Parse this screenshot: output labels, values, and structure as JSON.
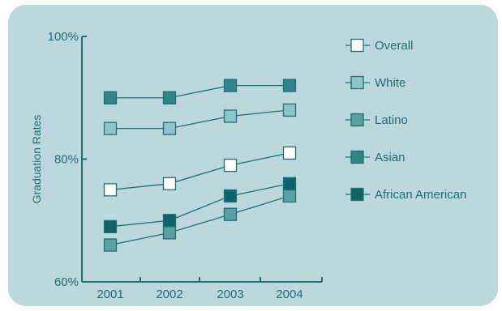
{
  "chart_data": {
    "type": "line",
    "title": "",
    "xlabel": "",
    "ylabel": "Graduation Rates",
    "categories": [
      "2001",
      "2002",
      "2003",
      "2004"
    ],
    "yticks": [
      "60%",
      "80%",
      "100%"
    ],
    "ylim": [
      60,
      100
    ],
    "grid": false,
    "legend_position": "right",
    "series": [
      {
        "name": "Overall",
        "values": [
          75,
          76,
          79,
          81
        ],
        "color": "#ffffff"
      },
      {
        "name": "White",
        "values": [
          85,
          85,
          87,
          88
        ],
        "color": "#8fc5c7"
      },
      {
        "name": "Latino",
        "values": [
          66,
          68,
          71,
          74
        ],
        "color": "#5aa1a4"
      },
      {
        "name": "Asian",
        "values": [
          90,
          90,
          92,
          92
        ],
        "color": "#2f8588"
      },
      {
        "name": "African American",
        "values": [
          69,
          70,
          74,
          76
        ],
        "color": "#0f6468"
      }
    ]
  }
}
